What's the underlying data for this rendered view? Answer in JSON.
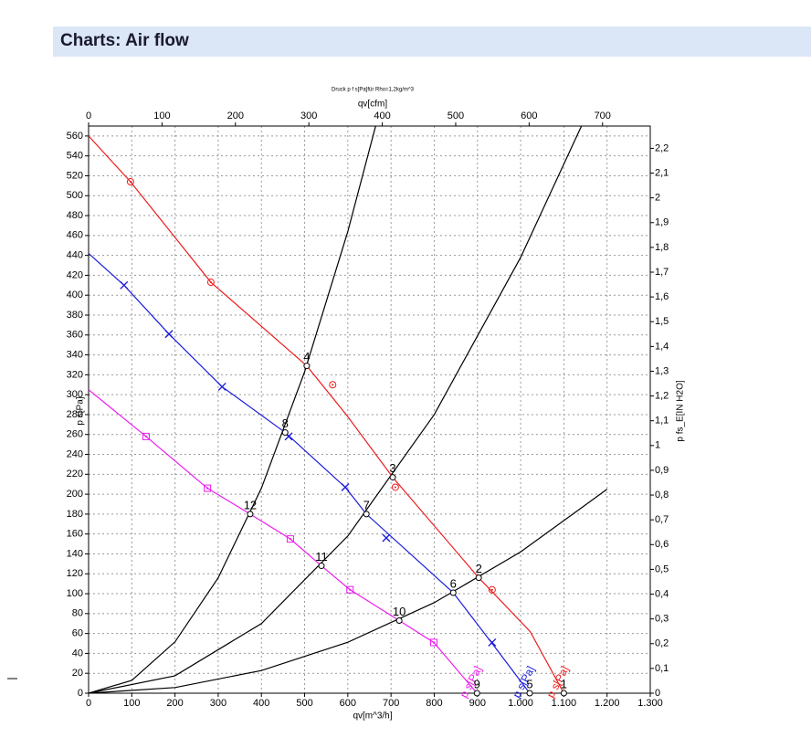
{
  "header": {
    "title": "Charts: Air flow"
  },
  "chart_data": {
    "type": "line",
    "title": "Druck p f s[Pa]für Rho=1,2kg/m^3",
    "xlabel": "qv[m^3/h]",
    "x2label": "qv[cfm]",
    "ylabel": "p s[Pa]",
    "y2label": "p fs_E[IN H2O]",
    "xlim": [
      0,
      1300
    ],
    "x2lim": [
      0,
      765
    ],
    "ylim": [
      0,
      570
    ],
    "y2lim": [
      0,
      2.29
    ],
    "xticks": [
      0,
      100,
      200,
      300,
      400,
      500,
      600,
      700,
      800,
      900,
      {
        "value": 1000,
        "label": "1.000"
      },
      {
        "value": 1100,
        "label": "1.100"
      },
      {
        "value": 1200,
        "label": "1.200"
      },
      {
        "value": 1300,
        "label": "1.300"
      }
    ],
    "x2ticks": [
      0,
      100,
      200,
      300,
      400,
      500,
      600,
      700
    ],
    "yticks": [
      0,
      20,
      40,
      60,
      80,
      100,
      120,
      140,
      160,
      180,
      200,
      220,
      240,
      260,
      280,
      300,
      320,
      340,
      360,
      380,
      400,
      420,
      440,
      460,
      480,
      500,
      520,
      540,
      560
    ],
    "y2ticks": [
      0,
      {
        "value": 0.1,
        "label": "0,1"
      },
      {
        "value": 0.2,
        "label": "0,2"
      },
      {
        "value": 0.3,
        "label": "0,3"
      },
      {
        "value": 0.4,
        "label": "0,4"
      },
      {
        "value": 0.5,
        "label": "0,5"
      },
      {
        "value": 0.6,
        "label": "0,6"
      },
      {
        "value": 0.7,
        "label": "0,7"
      },
      {
        "value": 0.8,
        "label": "0,8"
      },
      {
        "value": 0.9,
        "label": "0,9"
      },
      1,
      {
        "value": 1.1,
        "label": "1,1"
      },
      {
        "value": 1.2,
        "label": "1,2"
      },
      {
        "value": 1.3,
        "label": "1,3"
      },
      {
        "value": 1.4,
        "label": "1,4"
      },
      {
        "value": 1.5,
        "label": "1,5"
      },
      {
        "value": 1.6,
        "label": "1,6"
      },
      {
        "value": 1.7,
        "label": "1,7"
      },
      {
        "value": 1.8,
        "label": "1,8"
      },
      {
        "value": 1.9,
        "label": "1,9"
      },
      2,
      {
        "value": 2.1,
        "label": "2,1"
      },
      {
        "value": 2.2,
        "label": "2,2"
      }
    ],
    "grid": true,
    "series": [
      {
        "name": "p s[Pa]",
        "color": "#ee1c1c",
        "marker": "circle",
        "x": [
          0,
          97,
          283,
          505,
          598,
          704,
          903,
          1022,
          1100
        ],
        "values": [
          560,
          514,
          413,
          329,
          279,
          217,
          116,
          62,
          0
        ],
        "marker_x": [
          97,
          283,
          565,
          710,
          934
        ],
        "marker_values": [
          514,
          413,
          310,
          207,
          104
        ]
      },
      {
        "name": "p s[Pa]",
        "color": "#1c1cdd",
        "marker": "x",
        "x": [
          0,
          82,
          186,
          309,
          455,
          594,
          643,
          844,
          934,
          1021
        ],
        "values": [
          442,
          410,
          361,
          308,
          262,
          207,
          180,
          101,
          50,
          0
        ],
        "marker_x": [
          82,
          186,
          309,
          463,
          594,
          689,
          934
        ],
        "marker_values": [
          410,
          361,
          308,
          258,
          207,
          156,
          51
        ]
      },
      {
        "name": "p s[Pa]",
        "color": "#ee1cee",
        "marker": "square",
        "x": [
          0,
          133,
          275,
          374,
          467,
          539,
          605,
          719,
          799,
          899
        ],
        "values": [
          305,
          258,
          206,
          180,
          155,
          128,
          104,
          73,
          51,
          0
        ],
        "marker_x": [
          133,
          275,
          467,
          605,
          799
        ],
        "marker_values": [
          258,
          206,
          155,
          104,
          51
        ]
      }
    ],
    "system_curves": [
      {
        "color": "#000000",
        "x": [
          0,
          100,
          200,
          300,
          400,
          500,
          600,
          668
        ],
        "values": [
          0,
          12.9,
          51.6,
          116,
          206,
          323,
          464,
          576
        ]
      },
      {
        "color": "#000000",
        "x": [
          0,
          200,
          400,
          600,
          800,
          1000,
          1144
        ],
        "values": [
          0,
          17.5,
          70,
          158,
          280,
          438,
          573
        ]
      },
      {
        "color": "#000000",
        "x": [
          0,
          200,
          400,
          600,
          800,
          1000,
          1200
        ],
        "values": [
          0,
          5.7,
          22.8,
          51.2,
          91,
          142,
          205
        ]
      }
    ],
    "points": [
      {
        "label": "1",
        "x": 1100,
        "y": 0
      },
      {
        "label": "2",
        "x": 903,
        "y": 116
      },
      {
        "label": "3",
        "x": 704,
        "y": 217
      },
      {
        "label": "4",
        "x": 505,
        "y": 329
      },
      {
        "label": "5",
        "x": 1021,
        "y": 0
      },
      {
        "label": "6",
        "x": 844,
        "y": 101
      },
      {
        "label": "7",
        "x": 643,
        "y": 180
      },
      {
        "label": "8",
        "x": 455,
        "y": 262
      },
      {
        "label": "9",
        "x": 899,
        "y": 0
      },
      {
        "label": "10",
        "x": 719,
        "y": 73
      },
      {
        "label": "11",
        "x": 539,
        "y": 128
      },
      {
        "label": "12",
        "x": 374,
        "y": 180
      }
    ]
  }
}
